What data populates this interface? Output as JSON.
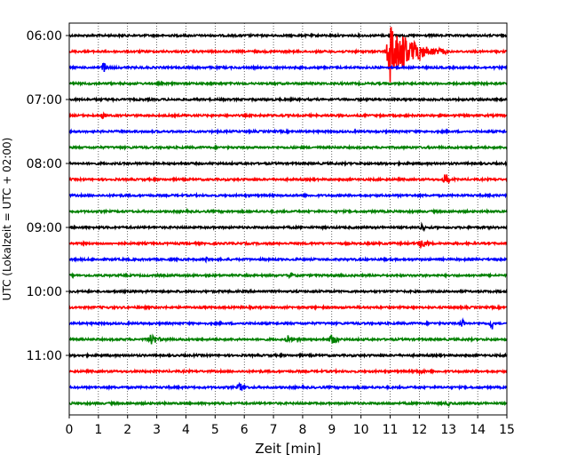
{
  "chart_data": {
    "type": "line",
    "title": "",
    "xlabel": "Zeit  [min]",
    "ylabel": "UTC (Lokalzeit = UTC + 02:00)",
    "xlim": [
      0,
      15
    ],
    "xticks": [
      0,
      1,
      2,
      3,
      4,
      5,
      6,
      7,
      8,
      9,
      10,
      11,
      12,
      13,
      14,
      15
    ],
    "xtick_labels": [
      "0",
      "1",
      "2",
      "3",
      "4",
      "5",
      "6",
      "7",
      "8",
      "9",
      "10",
      "11",
      "12",
      "13",
      "14",
      "15"
    ],
    "yticks": [
      "06:00",
      "07:00",
      "08:00",
      "09:00",
      "10:00",
      "11:00"
    ],
    "grid": "vertical dotted at each minute",
    "trace_colors_cycle": [
      "#000000",
      "#ff0000",
      "#0000ff",
      "#008000"
    ],
    "traces": [
      {
        "start": "06:00",
        "color": "#000000",
        "events": []
      },
      {
        "start": "06:15",
        "color": "#ff0000",
        "events": [
          {
            "t": 11.0,
            "amp": 1.0,
            "dur": 2.0
          }
        ]
      },
      {
        "start": "06:30",
        "color": "#0000ff",
        "events": [
          {
            "t": 1.2,
            "amp": 0.2,
            "dur": 0.2
          }
        ]
      },
      {
        "start": "06:45",
        "color": "#008000",
        "events": []
      },
      {
        "start": "07:00",
        "color": "#000000",
        "events": []
      },
      {
        "start": "07:15",
        "color": "#ff0000",
        "events": [
          {
            "t": 1.2,
            "amp": 0.12,
            "dur": 0.2
          }
        ]
      },
      {
        "start": "07:30",
        "color": "#0000ff",
        "events": []
      },
      {
        "start": "07:45",
        "color": "#008000",
        "events": []
      },
      {
        "start": "08:00",
        "color": "#000000",
        "events": []
      },
      {
        "start": "08:15",
        "color": "#ff0000",
        "events": [
          {
            "t": 12.9,
            "amp": 0.25,
            "dur": 0.3
          }
        ]
      },
      {
        "start": "08:30",
        "color": "#0000ff",
        "events": []
      },
      {
        "start": "08:45",
        "color": "#008000",
        "events": []
      },
      {
        "start": "09:00",
        "color": "#000000",
        "events": [
          {
            "t": 12.1,
            "amp": 0.15,
            "dur": 0.2
          }
        ]
      },
      {
        "start": "09:15",
        "color": "#ff0000",
        "events": [
          {
            "t": 12.1,
            "amp": 0.22,
            "dur": 0.4
          }
        ]
      },
      {
        "start": "09:30",
        "color": "#0000ff",
        "events": [
          {
            "t": 4.7,
            "amp": 0.08,
            "dur": 0.2
          }
        ]
      },
      {
        "start": "09:45",
        "color": "#008000",
        "events": [
          {
            "t": 7.6,
            "amp": 0.1,
            "dur": 0.2
          }
        ]
      },
      {
        "start": "10:00",
        "color": "#000000",
        "events": []
      },
      {
        "start": "10:15",
        "color": "#ff0000",
        "events": []
      },
      {
        "start": "10:30",
        "color": "#0000ff",
        "events": [
          {
            "t": 13.5,
            "amp": 0.12,
            "dur": 0.2
          },
          {
            "t": 14.5,
            "amp": 0.15,
            "dur": 0.2
          }
        ]
      },
      {
        "start": "10:45",
        "color": "#008000",
        "events": [
          {
            "t": 2.8,
            "amp": 0.18,
            "dur": 0.6
          },
          {
            "t": 7.5,
            "amp": 0.1,
            "dur": 0.8
          },
          {
            "t": 9.0,
            "amp": 0.15,
            "dur": 0.4
          }
        ]
      },
      {
        "start": "11:00",
        "color": "#000000",
        "events": []
      },
      {
        "start": "11:15",
        "color": "#ff0000",
        "events": [
          {
            "t": 12.0,
            "amp": 0.08,
            "dur": 0.3
          }
        ]
      },
      {
        "start": "11:30",
        "color": "#0000ff",
        "events": [
          {
            "t": 5.9,
            "amp": 0.2,
            "dur": 0.25
          }
        ]
      },
      {
        "start": "11:45",
        "color": "#008000",
        "events": [
          {
            "t": 13.0,
            "amp": 0.08,
            "dur": 0.3
          }
        ]
      }
    ]
  }
}
